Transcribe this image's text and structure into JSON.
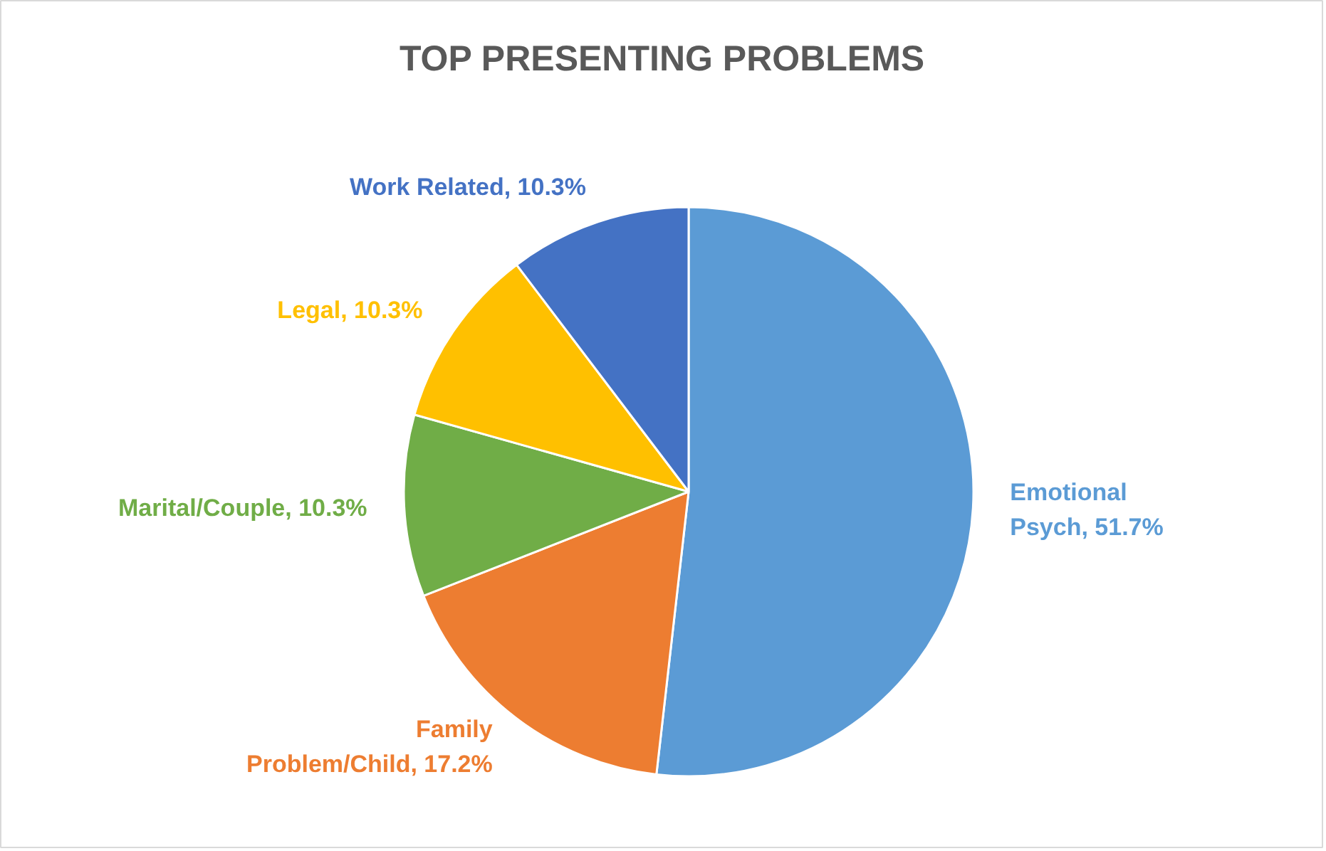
{
  "chart_data": {
    "type": "pie",
    "title": "TOP PRESENTING PROBLEMS",
    "categories": [
      "Emotional Psych",
      "Family Problem/Child",
      "Marital/Couple",
      "Legal",
      "Work Related"
    ],
    "values": [
      51.7,
      17.2,
      10.3,
      10.3,
      10.3
    ],
    "colors": [
      "#5b9bd5",
      "#ed7d31",
      "#70ad47",
      "#ffc000",
      "#4472c4"
    ],
    "value_labels": [
      "51.7%",
      "17.2%",
      "10.3%",
      "10.3%",
      "10.3%"
    ]
  }
}
